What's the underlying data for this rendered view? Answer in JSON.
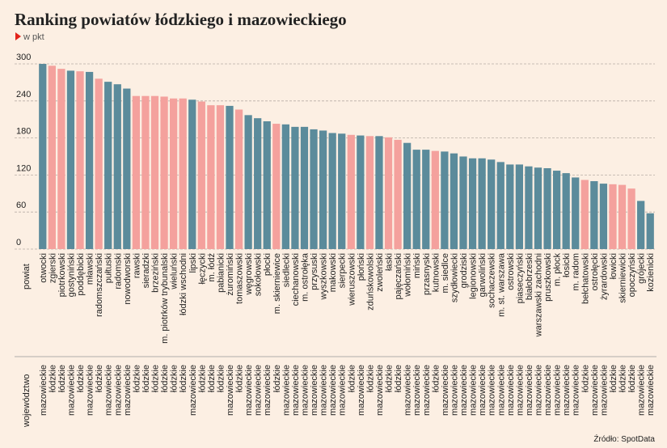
{
  "chart_data": {
    "type": "bar",
    "title": "Ranking powiatów łódzkiego i mazowieckiego",
    "subtitle": "w pkt",
    "row_labels": [
      "powiat",
      "województwo"
    ],
    "source": "Źródło: SpotData",
    "categories": [
      "otwocki",
      "zgierski",
      "piotrkowski",
      "gostyniński",
      "poddębicki",
      "mławski",
      "radomszczański",
      "pułtuski",
      "radomski",
      "nowodworski",
      "rawski",
      "sieradzki",
      "brzeziński",
      "m. piotrków trybunalski",
      "wieluński",
      "łódzki wschodni",
      "lipski",
      "łęczycki",
      "m. łódź",
      "pabianicki",
      "żuromiński",
      "tomaszowski",
      "węgrowski",
      "sokołowski",
      "płocki",
      "m. skierniewice",
      "siedlecki",
      "ciechanowski",
      "m. ostrołęka",
      "przysuski",
      "wyszkowski",
      "makowski",
      "sierpecki",
      "wieruszowski",
      "płoński",
      "zduńskowolski",
      "zwoleński",
      "łaski",
      "pajęczański",
      "wołomiński",
      "miński",
      "przasnyski",
      "kutnowski",
      "m. siedlce",
      "szydłowiecki",
      "grodziski",
      "legionowski",
      "garwoliński",
      "sochaczewski",
      "m. st. warszawa",
      "ostrowski",
      "piaseczyński",
      "białobrzeski",
      "warszawski zachodni",
      "pruszkowski",
      "m. płock",
      "łosicki",
      "m. radom",
      "bełchatowski",
      "ostrołęcki",
      "żyrardowski",
      "łowicki",
      "skierniewicki",
      "opoczyński",
      "grójecki",
      "kozienicki"
    ],
    "regions": [
      "mazowieckie",
      "łódzkie",
      "łódzkie",
      "mazowieckie",
      "łódzkie",
      "mazowieckie",
      "łódzkie",
      "mazowieckie",
      "mazowieckie",
      "mazowieckie",
      "łódzkie",
      "łódzkie",
      "łódzkie",
      "łódzkie",
      "łódzkie",
      "łódzkie",
      "mazowieckie",
      "łódzkie",
      "łódzkie",
      "łódzkie",
      "mazowieckie",
      "łódzkie",
      "mazowieckie",
      "mazowieckie",
      "mazowieckie",
      "łódzkie",
      "mazowieckie",
      "mazowieckie",
      "mazowieckie",
      "mazowieckie",
      "mazowieckie",
      "mazowieckie",
      "mazowieckie",
      "łódzkie",
      "mazowieckie",
      "łódzkie",
      "mazowieckie",
      "łódzkie",
      "łódzkie",
      "mazowieckie",
      "mazowieckie",
      "mazowieckie",
      "łódzkie",
      "mazowieckie",
      "mazowieckie",
      "mazowieckie",
      "mazowieckie",
      "mazowieckie",
      "mazowieckie",
      "mazowieckie",
      "mazowieckie",
      "mazowieckie",
      "mazowieckie",
      "mazowieckie",
      "mazowieckie",
      "mazowieckie",
      "mazowieckie",
      "mazowieckie",
      "łódzkie",
      "mazowieckie",
      "mazowieckie",
      "łódzkie",
      "łódzkie",
      "łódzkie",
      "mazowieckie",
      "mazowieckie"
    ],
    "values": [
      300,
      297,
      292,
      289,
      288,
      287,
      276,
      271,
      267,
      260,
      248,
      248,
      248,
      247,
      244,
      244,
      242,
      239,
      233,
      233,
      232,
      226,
      217,
      212,
      207,
      203,
      202,
      198,
      198,
      194,
      192,
      188,
      187,
      185,
      184,
      183,
      183,
      181,
      177,
      172,
      161,
      161,
      159,
      158,
      155,
      150,
      147,
      147,
      145,
      141,
      137,
      137,
      134,
      132,
      131,
      127,
      123,
      116,
      112,
      110,
      106,
      105,
      104,
      98,
      78,
      58
    ],
    "region_colors": {
      "mazowieckie": "#5b8b9b",
      "łódzkie": "#f4a19d"
    },
    "ylim": [
      0,
      300
    ],
    "yticks": [
      0,
      60,
      120,
      180,
      240,
      300
    ],
    "grid": true
  }
}
